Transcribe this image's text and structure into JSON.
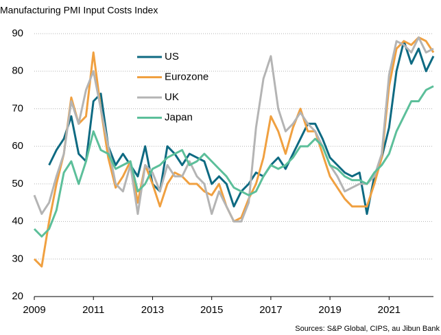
{
  "chart_data": {
    "type": "line",
    "subtitle": "Manufacturing PMI Input Costs Index",
    "source": "Sources: S&P Global, CIPS, au Jibun Bank",
    "x": [
      2009,
      2009.25,
      2009.5,
      2009.75,
      2010,
      2010.25,
      2010.5,
      2010.75,
      2011,
      2011.25,
      2011.5,
      2011.75,
      2012,
      2012.25,
      2012.5,
      2012.75,
      2013,
      2013.25,
      2013.5,
      2013.75,
      2014,
      2014.25,
      2014.5,
      2014.75,
      2015,
      2015.25,
      2015.5,
      2015.75,
      2016,
      2016.25,
      2016.5,
      2016.75,
      2017,
      2017.25,
      2017.5,
      2017.75,
      2018,
      2018.25,
      2018.5,
      2018.75,
      2019,
      2019.25,
      2019.5,
      2019.75,
      2020,
      2020.25,
      2020.5,
      2020.75,
      2021,
      2021.25,
      2021.5,
      2021.75,
      2022,
      2022.25,
      2022.5
    ],
    "series": [
      {
        "name": "US",
        "color": "#0e6a82",
        "values": [
          null,
          null,
          55,
          59,
          62,
          68,
          58,
          56,
          72,
          74,
          60,
          55,
          58,
          55,
          52,
          60,
          50,
          48,
          60,
          58,
          55,
          58,
          57,
          56,
          50,
          52,
          50,
          44,
          48,
          50,
          53,
          52,
          55,
          57,
          54,
          58,
          62,
          66,
          66,
          62,
          57,
          55,
          53,
          52,
          53,
          42,
          52,
          57,
          65,
          80,
          88,
          82,
          86,
          80,
          84
        ]
      },
      {
        "name": "Eurozone",
        "color": "#f0a040",
        "values": [
          30,
          28,
          40,
          50,
          58,
          73,
          66,
          68,
          85,
          70,
          57,
          49,
          52,
          56,
          45,
          55,
          50,
          44,
          50,
          53,
          52,
          50,
          50,
          48,
          47,
          50,
          44,
          40,
          41,
          46,
          50,
          57,
          68,
          64,
          58,
          65,
          70,
          64,
          64,
          58,
          52,
          49,
          46,
          44,
          44,
          44,
          50,
          57,
          76,
          86,
          88,
          87,
          89,
          88,
          85
        ]
      },
      {
        "name": "UK",
        "color": "#b4b4b4",
        "values": [
          47,
          42,
          45,
          52,
          58,
          72,
          66,
          75,
          80,
          70,
          60,
          50,
          48,
          55,
          42,
          55,
          53,
          48,
          55,
          52,
          52,
          56,
          52,
          50,
          42,
          48,
          44,
          40,
          40,
          45,
          65,
          78,
          84,
          70,
          64,
          66,
          69,
          66,
          64,
          60,
          55,
          52,
          48,
          49,
          50,
          50,
          52,
          58,
          79,
          88,
          87,
          85,
          89,
          85,
          86
        ]
      },
      {
        "name": "Japan",
        "color": "#5cbf9a",
        "values": [
          38,
          36,
          38,
          43,
          53,
          56,
          50,
          56,
          64,
          59,
          58,
          54,
          55,
          56,
          48,
          50,
          54,
          55,
          57,
          58,
          59,
          55,
          56,
          58,
          56,
          54,
          52,
          49,
          48,
          47,
          48,
          52,
          55,
          54,
          55,
          57,
          60,
          60,
          62,
          60,
          55,
          54,
          52,
          51,
          51,
          50,
          53,
          55,
          58,
          64,
          68,
          72,
          72,
          75,
          76
        ]
      }
    ],
    "xlim": [
      2009,
      2022.5
    ],
    "xticks": [
      2009,
      2011,
      2013,
      2015,
      2017,
      2019,
      2021
    ],
    "ylim": [
      20,
      90
    ],
    "yticks": [
      20,
      30,
      40,
      50,
      60,
      70,
      80,
      90
    ],
    "grid": true
  }
}
